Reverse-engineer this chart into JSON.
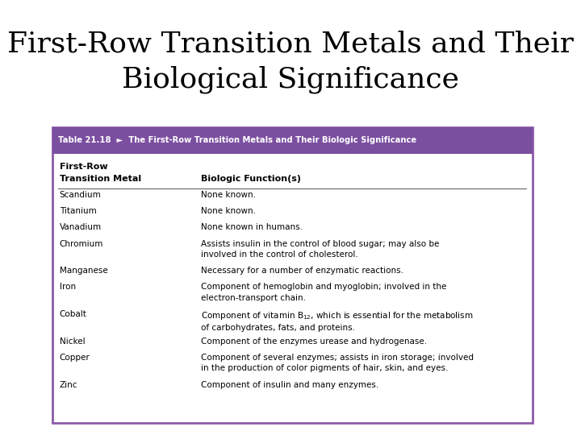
{
  "title_line1": "First-Row Transition Metals and Their",
  "title_line2": "Biological Significance",
  "title_fontsize": 26,
  "background_color": "#ffffff",
  "table_border_color": "#8b5ca8",
  "header_bg_color": "#7b4fa0",
  "header_text_color": "#ffffff",
  "header_label": "Table 21.18",
  "header_arrow": "►",
  "header_title": "The First-Row Transition Metals and Their Biologic Significance",
  "col1_header_line1": "First-Row",
  "col1_header_line2": "Transition Metal",
  "col2_header": "Biologic Function(s)",
  "rows": [
    [
      "Scandium",
      "None known."
    ],
    [
      "Titanium",
      "None known."
    ],
    [
      "Vanadium",
      "None known in humans."
    ],
    [
      "Chromium",
      "Assists insulin in the control of blood sugar; may also be\ninvolved in the control of cholesterol."
    ],
    [
      "Manganese",
      "Necessary for a number of enzymatic reactions."
    ],
    [
      "Iron",
      "Component of hemoglobin and myoglobin; involved in the\nelectron-transport chain."
    ],
    [
      "Cobalt",
      "Component of vitamin B$_{12}$, which is essential for the metabolism\nof carbohydrates, fats, and proteins."
    ],
    [
      "Nickel",
      "Component of the enzymes urease and hydrogenase."
    ],
    [
      "Copper",
      "Component of several enzymes; assists in iron storage; involved\nin the production of color pigments of hair, skin, and eyes."
    ],
    [
      "Zinc",
      "Component of insulin and many enzymes."
    ]
  ]
}
